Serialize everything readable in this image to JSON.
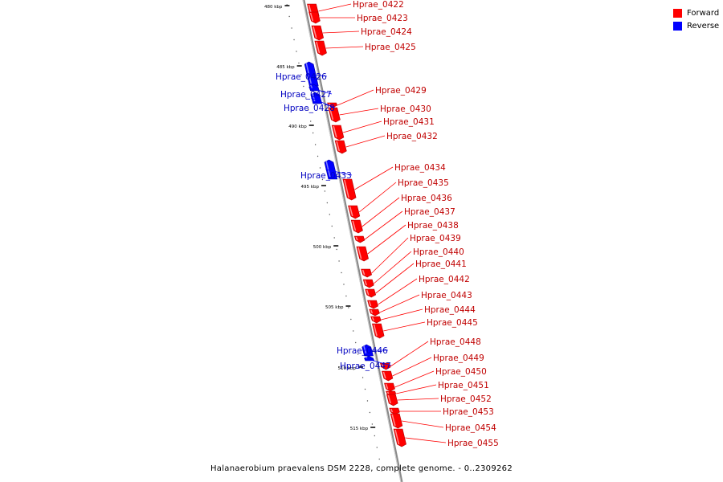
{
  "caption": "Halanaerobium praevalens DSM 2228, complete genome. - 0..2309262",
  "legend": [
    {
      "label": "Forward",
      "color": "#ff0000"
    },
    {
      "label": "Reverse",
      "color": "#0000ff"
    }
  ],
  "colors": {
    "forward": "#ff0000",
    "reverse": "#0000ff",
    "axis": "#888888"
  },
  "ticks": [
    "480 kbp",
    "485 kbp",
    "490 kbp",
    "495 kbp",
    "500 kbp",
    "505 kbp",
    "510 kbp",
    "515 kbp"
  ],
  "genes": [
    {
      "label": "Hprae_0422",
      "strand": "forward"
    },
    {
      "label": "Hprae_0423",
      "strand": "forward"
    },
    {
      "label": "Hprae_0424",
      "strand": "forward"
    },
    {
      "label": "Hprae_0425",
      "strand": "forward"
    },
    {
      "label": "Hprae_0426",
      "strand": "reverse"
    },
    {
      "label": "Hprae_0427",
      "strand": "reverse"
    },
    {
      "label": "Hprae_0428",
      "strand": "reverse"
    },
    {
      "label": "Hprae_0429",
      "strand": "forward"
    },
    {
      "label": "Hprae_0430",
      "strand": "forward"
    },
    {
      "label": "Hprae_0431",
      "strand": "forward"
    },
    {
      "label": "Hprae_0432",
      "strand": "forward"
    },
    {
      "label": "Hprae_0433",
      "strand": "reverse"
    },
    {
      "label": "Hprae_0434",
      "strand": "forward"
    },
    {
      "label": "Hprae_0435",
      "strand": "forward"
    },
    {
      "label": "Hprae_0436",
      "strand": "forward"
    },
    {
      "label": "Hprae_0437",
      "strand": "forward"
    },
    {
      "label": "Hprae_0438",
      "strand": "forward"
    },
    {
      "label": "Hprae_0439",
      "strand": "forward"
    },
    {
      "label": "Hprae_0440",
      "strand": "forward"
    },
    {
      "label": "Hprae_0441",
      "strand": "forward"
    },
    {
      "label": "Hprae_0442",
      "strand": "forward"
    },
    {
      "label": "Hprae_0443",
      "strand": "forward"
    },
    {
      "label": "Hprae_0444",
      "strand": "forward"
    },
    {
      "label": "Hprae_0445",
      "strand": "forward"
    },
    {
      "label": "Hprae_0446",
      "strand": "reverse"
    },
    {
      "label": "Hprae_0447",
      "strand": "reverse"
    },
    {
      "label": "Hprae_0448",
      "strand": "forward"
    },
    {
      "label": "Hprae_0449",
      "strand": "forward"
    },
    {
      "label": "Hprae_0450",
      "strand": "forward"
    },
    {
      "label": "Hprae_0451",
      "strand": "forward"
    },
    {
      "label": "Hprae_0452",
      "strand": "forward"
    },
    {
      "label": "Hprae_0453",
      "strand": "forward"
    },
    {
      "label": "Hprae_0454",
      "strand": "forward"
    },
    {
      "label": "Hprae_0455",
      "strand": "forward"
    }
  ]
}
